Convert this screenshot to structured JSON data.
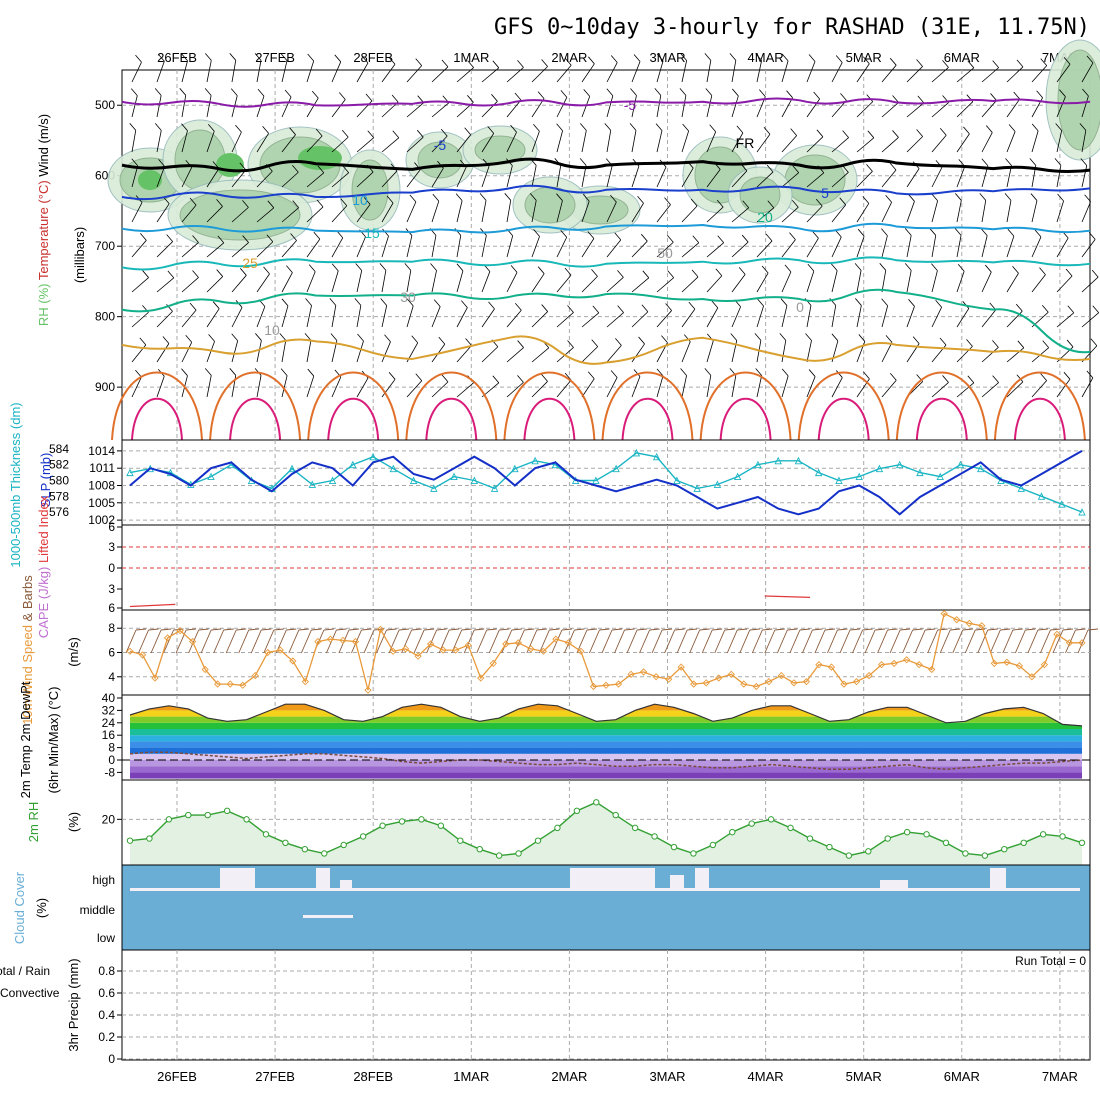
{
  "title": "GFS 0~10day 3-hourly for RASHAD (31E, 11.75N)",
  "colors": {
    "temp_purple": "#8a1aa8",
    "temp_black": "#000000",
    "temp_blue": "#1a3fcc",
    "temp_lightblue": "#1d9bd8",
    "temp_cyan": "#19b8b8",
    "temp_teal": "#12b08a",
    "temp_gold": "#d9a030",
    "temp_orange": "#e0702a",
    "temp_magenta": "#d91c7a",
    "rh_fill": "#d9ecd9",
    "rh_fill2": "#a8d0a8",
    "rh_fill3": "#66c266",
    "thickness": "#1bb5c4",
    "slp": "#1430c8",
    "lifted": "#e0393b",
    "cape": "#c070d0",
    "wind": "#e89a3a",
    "barb": "#8b5a3a",
    "rh2m": "#33a033",
    "cloud": "#6aaed6",
    "dewpt": "#7a4a3a"
  },
  "chart_data": [
    {
      "type": "contour",
      "panel": "upper-air",
      "xaxis_dates": [
        "26FEB",
        "27FEB",
        "28FEB",
        "1MAR",
        "2MAR",
        "3MAR",
        "4MAR",
        "5MAR",
        "6MAR",
        "7MAR"
      ],
      "ylabel": "(millibars)",
      "ylabel_parts": {
        "rh": "RH (%)",
        "temp": "Temperature (°C)",
        "wind": "Wind (m/s)"
      },
      "yticks": [
        500,
        600,
        700,
        800,
        900
      ],
      "ylim": [
        450,
        975
      ],
      "contour_labels": [
        {
          "text": "-5",
          "color": "purple"
        },
        {
          "text": "FR",
          "color": "black"
        },
        {
          "text": "-5",
          "color": "blue"
        },
        {
          "text": "5",
          "color": "blue"
        },
        {
          "text": "10",
          "color": "lightblue"
        },
        {
          "text": "15",
          "color": "cyan"
        },
        {
          "text": "20",
          "color": "teal"
        },
        {
          "text": "25",
          "color": "gold"
        },
        {
          "text": "50",
          "color": "gray"
        },
        {
          "text": "30",
          "color": "gray"
        },
        {
          "text": "0",
          "color": "gray"
        },
        {
          "text": "10",
          "color": "gray"
        }
      ],
      "isotherms": [
        {
          "name": "-5 (upper)",
          "color": "purple",
          "level_mb": [
            495,
            498,
            500,
            498,
            497,
            496,
            495,
            493,
            496,
            494,
            495
          ]
        },
        {
          "name": "freezing",
          "color": "black",
          "level_mb": [
            585,
            590,
            583,
            591,
            580,
            585,
            580,
            585,
            582,
            590,
            592
          ]
        },
        {
          "name": "-5",
          "color": "blue",
          "level_mb": [
            630,
            627,
            630,
            624,
            618,
            620,
            620,
            618,
            625,
            622,
            618
          ]
        },
        {
          "name": "10",
          "color": "lightblue",
          "level_mb": [
            675,
            675,
            678,
            680,
            677,
            672,
            670,
            675,
            672,
            676,
            678
          ]
        },
        {
          "name": "15",
          "color": "cyan",
          "level_mb": [
            730,
            725,
            722,
            722,
            724,
            725,
            722,
            720,
            720,
            723,
            725
          ]
        },
        {
          "name": "20",
          "color": "teal",
          "level_mb": [
            790,
            778,
            770,
            770,
            772,
            768,
            775,
            775,
            765,
            790,
            850
          ]
        },
        {
          "name": "25",
          "color": "gold",
          "level_mb": [
            840,
            850,
            835,
            860,
            830,
            865,
            830,
            860,
            840,
            850,
            860
          ]
        }
      ]
    },
    {
      "type": "line",
      "panel": "thickness-slp",
      "ylabel_left": "1000-500mb Thickness (dm)",
      "ylabel_right": "SLP (mb)",
      "yticks_left": [
        576,
        578,
        580,
        582,
        584
      ],
      "yticks_right": [
        1002,
        1005,
        1008,
        1011,
        1014
      ],
      "series": [
        {
          "name": "1000-500mb Thickness (dm)",
          "axis": "left",
          "values": [
            581,
            581.5,
            581,
            579.5,
            580.5,
            582,
            580,
            579,
            581.5,
            579.5,
            580,
            582,
            583,
            581.5,
            580,
            579,
            580.5,
            580,
            579,
            581.5,
            582.5,
            582,
            580,
            580,
            581.5,
            583.5,
            583,
            580,
            579,
            579.5,
            580.5,
            582,
            582.5,
            582.5,
            581,
            580,
            580.5,
            581.5,
            582,
            581,
            580.5,
            582,
            581.5,
            580,
            579,
            578,
            577,
            576
          ]
        },
        {
          "name": "SLP (mb)",
          "axis": "right",
          "values": [
            1008,
            1011,
            1010,
            1008,
            1011,
            1012,
            1009,
            1007,
            1010,
            1012,
            1011,
            1008,
            1012,
            1013,
            1010,
            1009,
            1011,
            1013,
            1011,
            1008,
            1011,
            1012,
            1009,
            1008,
            1007,
            1008,
            1009,
            1008,
            1006,
            1004,
            1005,
            1006,
            1004,
            1003,
            1004,
            1007,
            1008,
            1006,
            1003,
            1006,
            1008,
            1010,
            1012,
            1009,
            1008,
            1010,
            1012,
            1014
          ]
        }
      ]
    },
    {
      "type": "line",
      "panel": "instability",
      "ylabel": "Lifted Index CAPE (J/kg)",
      "yticks": [
        6,
        3,
        0,
        3,
        6
      ],
      "series": [
        {
          "name": "Lifted Index",
          "values": [
            5.5,
            5.2,
            null,
            null,
            null,
            null,
            5.6,
            null,
            null,
            null,
            4.7,
            null,
            null,
            null,
            4.0,
            4.2,
            null,
            null,
            null,
            null,
            5.6,
            null
          ]
        }
      ]
    },
    {
      "type": "line",
      "panel": "wind10m",
      "ylabel": "10m Wind Speed (m/s) & Barbs",
      "yticks": [
        4,
        6,
        8
      ],
      "ylim": [
        2.5,
        9.5
      ],
      "series": [
        {
          "name": "10m Wind Speed",
          "values": [
            6.1,
            5.8,
            3.9,
            7.2,
            7.8,
            6.9,
            4.6,
            3.4,
            3.4,
            3.3,
            4.1,
            6.0,
            6.2,
            5.3,
            3.6,
            6.9,
            7.1,
            7.0,
            6.9,
            2.9,
            7.9,
            6.1,
            6.3,
            5.7,
            6.7,
            6.2,
            6.2,
            6.6,
            3.9,
            5.1,
            6.7,
            6.8,
            6.3,
            6.1,
            7.1,
            6.8,
            6.1,
            3.2,
            3.3,
            3.4,
            4.2,
            4.4,
            4.0,
            3.8,
            4.8,
            3.4,
            3.5,
            3.9,
            4.2,
            3.4,
            3.2,
            3.6,
            4.1,
            3.5,
            3.6,
            5.0,
            4.8,
            3.4,
            3.6,
            4.1,
            5.0,
            5.1,
            5.4,
            5.0,
            4.6,
            9.2,
            8.7,
            8.4,
            8.2,
            5.1,
            5.2,
            4.9,
            4.0,
            5.0,
            7.5,
            6.8,
            6.8
          ]
        }
      ]
    },
    {
      "type": "area",
      "panel": "temp2m",
      "ylabel": "2m Temp 2m DewPt (6hr Min/Max) (°C)",
      "yticks": [
        -8,
        0,
        8,
        16,
        24,
        32,
        40
      ],
      "series": [
        {
          "name": "2m Temp",
          "values": [
            29,
            33,
            35,
            33,
            27,
            25,
            26,
            31,
            36,
            36,
            32,
            26,
            25,
            28,
            34,
            36,
            34,
            28,
            25,
            27,
            33,
            36,
            35,
            30,
            25,
            26,
            32,
            36,
            34,
            30,
            25,
            27,
            32,
            35,
            35,
            30,
            25,
            26,
            31,
            34,
            34,
            29,
            24,
            25,
            30,
            33,
            34,
            30,
            23,
            22
          ]
        },
        {
          "name": "2m DewPt",
          "values": [
            4,
            5,
            5,
            4,
            3,
            2,
            1,
            2,
            3,
            4,
            4,
            3,
            2,
            1,
            -1,
            -2,
            -1,
            0,
            0,
            -1,
            -2,
            -3,
            -3,
            -2,
            -3,
            -4,
            -4,
            -3,
            -3,
            -4,
            -5,
            -5,
            -4,
            -3,
            -4,
            -5,
            -6,
            -6,
            -5,
            -4,
            -3,
            -5,
            -6,
            -5,
            -4,
            -3,
            -2,
            -2,
            -1,
            0
          ]
        }
      ]
    },
    {
      "type": "area",
      "panel": "rh2m",
      "ylabel": "2m RH (%)",
      "yticks": [
        20
      ],
      "series": [
        {
          "name": "2m RH",
          "values": [
            10,
            11,
            20,
            22,
            22,
            24,
            20,
            13,
            9,
            6,
            4,
            8,
            12,
            17,
            19,
            20,
            17,
            10,
            6,
            3,
            4,
            10,
            16,
            24,
            28,
            22,
            16,
            12,
            7,
            4,
            8,
            14,
            18,
            20,
            16,
            11,
            7,
            3,
            5,
            11,
            14,
            13,
            9,
            4,
            3,
            6,
            9,
            13,
            12,
            9
          ]
        }
      ]
    },
    {
      "type": "bar",
      "panel": "cloud",
      "ylabel": "Cloud Cover (%)",
      "categories": [
        "high",
        "middle",
        "low"
      ]
    },
    {
      "type": "bar",
      "panel": "precip",
      "ylabel": "3hr Precip (mm)",
      "legend": [
        "Total / Rain",
        "Convective"
      ],
      "yticks": [
        0,
        0.2,
        0.4,
        0.6,
        0.8
      ],
      "annotation": "Run Total = 0",
      "values": []
    }
  ]
}
